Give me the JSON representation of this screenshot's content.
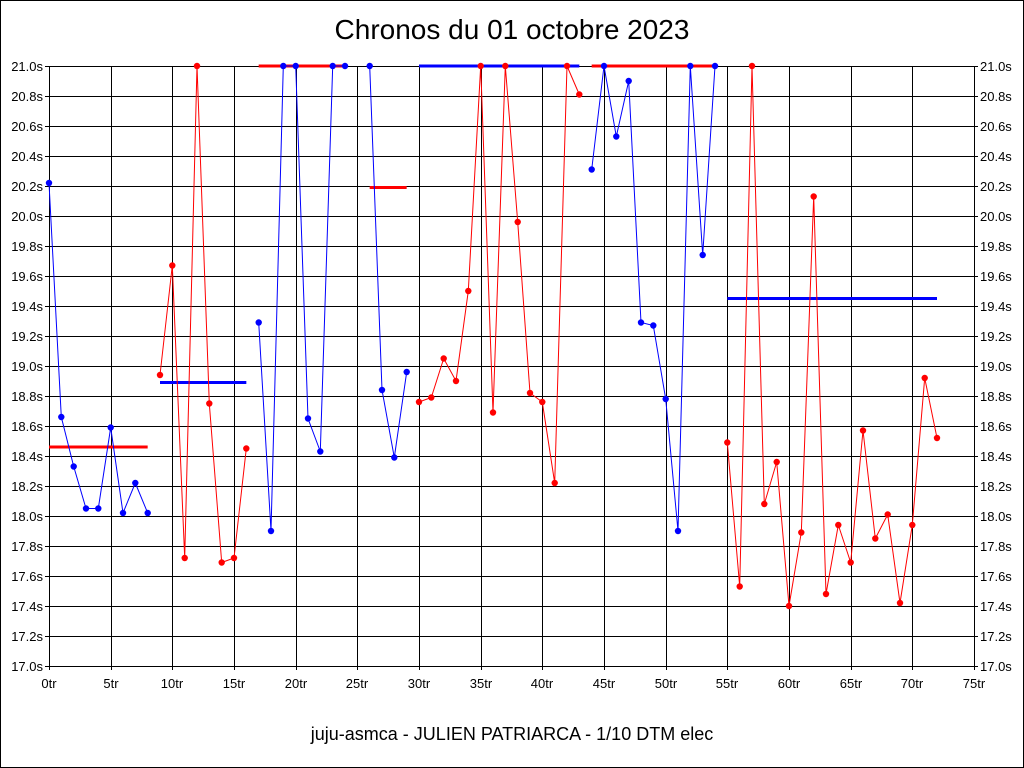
{
  "chart_data": {
    "type": "line",
    "title": "Chronos du 01 octobre 2023",
    "caption": "juju-asmca - JULIEN PATRIARCA - 1/10 DTM elec",
    "xlim": [
      0,
      75
    ],
    "ylim": [
      17.0,
      21.0
    ],
    "x_ticks": [
      0,
      5,
      10,
      15,
      20,
      25,
      30,
      35,
      40,
      45,
      50,
      55,
      60,
      65,
      70,
      75
    ],
    "x_tick_labels": [
      "0tr",
      "5tr",
      "10tr",
      "15tr",
      "20tr",
      "25tr",
      "30tr",
      "35tr",
      "40tr",
      "45tr",
      "50tr",
      "55tr",
      "60tr",
      "65tr",
      "70tr",
      "75tr"
    ],
    "y_ticks": [
      17.0,
      17.2,
      17.4,
      17.6,
      17.8,
      18.0,
      18.2,
      18.4,
      18.6,
      18.8,
      19.0,
      19.2,
      19.4,
      19.6,
      19.8,
      20.0,
      20.2,
      20.4,
      20.6,
      20.8,
      21.0
    ],
    "y_tick_labels": [
      "17.0s",
      "17.2s",
      "17.4s",
      "17.6s",
      "17.8s",
      "18.0s",
      "18.2s",
      "18.4s",
      "18.6s",
      "18.8s",
      "19.0s",
      "19.2s",
      "19.4s",
      "19.6s",
      "19.8s",
      "20.0s",
      "20.2s",
      "20.4s",
      "20.6s",
      "20.8s",
      "21.0s"
    ],
    "grid": true,
    "colors": {
      "blue": "#0000ff",
      "red": "#ff0000",
      "grid": "#000000"
    },
    "series": [
      {
        "color": "#0000ff",
        "points": [
          [
            0,
            20.22
          ],
          [
            1,
            18.66
          ],
          [
            2,
            18.33
          ],
          [
            3,
            18.05
          ],
          [
            4,
            18.05
          ],
          [
            5,
            18.59
          ],
          [
            6,
            18.02
          ],
          [
            7,
            18.22
          ],
          [
            8,
            18.02
          ]
        ]
      },
      {
        "color": "#ff0000",
        "points": [
          [
            9,
            18.94
          ],
          [
            10,
            19.67
          ],
          [
            11,
            17.72
          ],
          [
            12,
            21.0
          ],
          [
            13,
            18.75
          ],
          [
            14,
            17.69
          ],
          [
            15,
            17.72
          ],
          [
            16,
            18.45
          ]
        ]
      },
      {
        "color": "#0000ff",
        "points": [
          [
            17,
            19.29
          ],
          [
            18,
            17.9
          ],
          [
            19,
            21.0
          ],
          [
            20,
            21.0
          ],
          [
            21,
            18.65
          ],
          [
            22,
            18.43
          ],
          [
            23,
            21.0
          ],
          [
            24,
            21.0
          ]
        ]
      },
      {
        "color": "#0000ff",
        "points": [
          [
            26,
            21.0
          ],
          [
            27,
            18.84
          ],
          [
            28,
            18.39
          ],
          [
            29,
            18.96
          ]
        ]
      },
      {
        "color": "#ff0000",
        "points": [
          [
            30,
            18.76
          ],
          [
            31,
            18.79
          ],
          [
            32,
            19.05
          ],
          [
            33,
            18.9
          ],
          [
            34,
            19.5
          ],
          [
            35,
            21.0
          ],
          [
            36,
            18.69
          ],
          [
            37,
            21.0
          ],
          [
            38,
            19.96
          ],
          [
            39,
            18.82
          ],
          [
            40,
            18.76
          ],
          [
            41,
            18.22
          ],
          [
            42,
            21.0
          ],
          [
            43,
            20.81
          ]
        ]
      },
      {
        "color": "#0000ff",
        "points": [
          [
            44,
            20.31
          ],
          [
            45,
            21.0
          ],
          [
            46,
            20.53
          ],
          [
            47,
            20.9
          ],
          [
            48,
            19.29
          ],
          [
            49,
            19.27
          ],
          [
            50,
            18.78
          ],
          [
            51,
            17.9
          ],
          [
            52,
            21.0
          ],
          [
            53,
            19.74
          ],
          [
            54,
            21.0
          ]
        ]
      },
      {
        "color": "#ff0000",
        "points": [
          [
            55,
            18.49
          ],
          [
            56,
            17.53
          ],
          [
            57,
            21.0
          ],
          [
            58,
            18.08
          ],
          [
            59,
            18.36
          ],
          [
            60,
            17.4
          ],
          [
            61,
            17.89
          ],
          [
            62,
            20.13
          ],
          [
            63,
            17.48
          ],
          [
            64,
            17.94
          ],
          [
            65,
            17.69
          ],
          [
            66,
            18.57
          ],
          [
            67,
            17.85
          ],
          [
            68,
            18.01
          ],
          [
            69,
            17.42
          ],
          [
            70,
            17.94
          ],
          [
            71,
            18.92
          ],
          [
            72,
            18.52
          ]
        ]
      }
    ],
    "segment_averages": [
      {
        "color": "#ff0000",
        "x_start": 0,
        "x_end": 8,
        "y": 18.46
      },
      {
        "color": "#0000ff",
        "x_start": 9,
        "x_end": 16,
        "y": 18.89
      },
      {
        "color": "#ff0000",
        "x_start": 17,
        "x_end": 24,
        "y": 21.0
      },
      {
        "color": "#ff0000",
        "x_start": 26,
        "x_end": 29,
        "y": 20.19
      },
      {
        "color": "#0000ff",
        "x_start": 30,
        "x_end": 43,
        "y": 21.0
      },
      {
        "color": "#ff0000",
        "x_start": 44,
        "x_end": 54,
        "y": 21.0
      },
      {
        "color": "#0000ff",
        "x_start": 55,
        "x_end": 72,
        "y": 19.45
      }
    ]
  }
}
